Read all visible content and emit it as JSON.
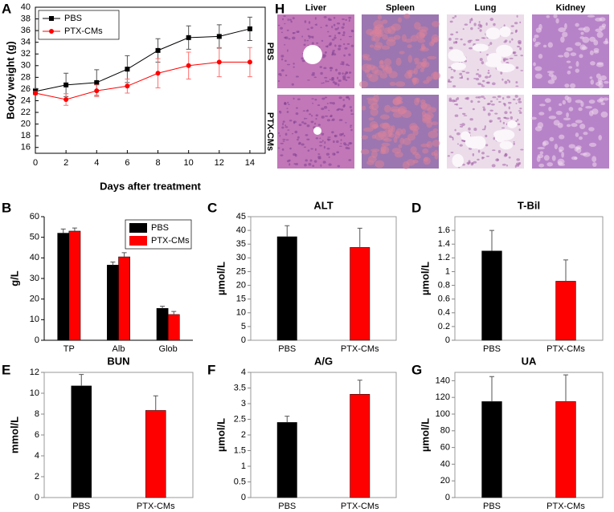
{
  "chart_data": [
    {
      "panel": "A",
      "type": "line",
      "xlabel": "Days after treatment",
      "ylabel": "Body weight (g)",
      "x": [
        0,
        2,
        4,
        6,
        8,
        10,
        12,
        14
      ],
      "series": [
        {
          "name": "PBS",
          "color": "#000000",
          "marker": "square",
          "values": [
            25.6,
            26.7,
            27.1,
            29.4,
            32.6,
            34.8,
            35.0,
            36.3
          ],
          "errors": [
            0.5,
            2.0,
            2.2,
            2.3,
            2.0,
            2.0,
            2.0,
            2.0
          ]
        },
        {
          "name": "PTX-CMs",
          "color": "#ff0000",
          "marker": "circle",
          "values": [
            25.3,
            24.2,
            25.7,
            26.5,
            28.7,
            30.0,
            30.6,
            30.6
          ],
          "errors": [
            0.3,
            1.0,
            1.0,
            1.2,
            2.5,
            2.3,
            2.5,
            2.5
          ]
        }
      ],
      "xlim": [
        0,
        15
      ],
      "xticks": [
        0,
        2,
        4,
        6,
        8,
        10,
        12,
        14
      ],
      "ylim": [
        15,
        40
      ],
      "yticks": [
        16,
        18,
        20,
        22,
        24,
        26,
        28,
        30,
        32,
        34,
        36,
        38,
        40
      ],
      "box": true,
      "legend": "upper left"
    },
    {
      "panel": "B",
      "type": "bar",
      "ylabel": "g/L",
      "categories": [
        "TP",
        "Alb",
        "Glob"
      ],
      "series": [
        {
          "name": "PBS",
          "color": "#000000",
          "values": [
            52,
            36.5,
            15.5
          ],
          "errors": [
            2,
            1.5,
            1
          ]
        },
        {
          "name": "PTX-CMs",
          "color": "#ff0000",
          "values": [
            53,
            40.5,
            12.5
          ],
          "errors": [
            1.5,
            2,
            1.5
          ]
        }
      ],
      "ylim": [
        0,
        60
      ],
      "yticks": [
        0,
        10,
        20,
        30,
        40,
        50,
        60
      ],
      "box": false,
      "legend": "upper right"
    },
    {
      "panel": "C",
      "type": "bar",
      "title": "ALT",
      "ylabel": "µmol/L",
      "categories": [
        "PBS",
        "PTX-CMs"
      ],
      "values": [
        37.7,
        33.8
      ],
      "errors": [
        4,
        7
      ],
      "colors": [
        "#000000",
        "#ff0000"
      ],
      "ylim": [
        0,
        45
      ],
      "yticks": [
        0,
        5,
        10,
        15,
        20,
        25,
        30,
        35,
        40,
        45
      ],
      "box": true
    },
    {
      "panel": "D",
      "type": "bar",
      "title": "T-Bil",
      "ylabel": "µmol/L",
      "categories": [
        "PBS",
        "PTX-CMs"
      ],
      "values": [
        1.3,
        0.86
      ],
      "errors": [
        0.3,
        0.31
      ],
      "colors": [
        "#000000",
        "#ff0000"
      ],
      "ylim": [
        0,
        1.8
      ],
      "yticks": [
        0,
        0.2,
        0.4,
        0.6,
        0.8,
        1,
        1.2,
        1.4,
        1.6
      ],
      "box": true
    },
    {
      "panel": "E",
      "type": "bar",
      "title": "BUN",
      "ylabel": "mmol/L",
      "categories": [
        "PBS",
        "PTX-CMs"
      ],
      "values": [
        10.7,
        8.35
      ],
      "errors": [
        1.1,
        1.4
      ],
      "colors": [
        "#000000",
        "#ff0000"
      ],
      "ylim": [
        0,
        12
      ],
      "yticks": [
        0,
        2,
        4,
        6,
        8,
        10,
        12
      ],
      "box": true
    },
    {
      "panel": "F",
      "type": "bar",
      "title": "A/G",
      "ylabel": "µmol/L",
      "categories": [
        "PBS",
        "PTX-CMs"
      ],
      "values": [
        2.4,
        3.3
      ],
      "errors": [
        0.2,
        0.45
      ],
      "colors": [
        "#000000",
        "#ff0000"
      ],
      "ylim": [
        0,
        4
      ],
      "yticks": [
        0,
        0.5,
        1,
        1.5,
        2,
        2.5,
        3,
        3.5,
        4
      ],
      "box": true
    },
    {
      "panel": "G",
      "type": "bar",
      "title": "UA",
      "ylabel": "µmol/L",
      "categories": [
        "PBS",
        "PTX-CMs"
      ],
      "values": [
        115,
        115
      ],
      "errors": [
        30,
        32
      ],
      "colors": [
        "#000000",
        "#ff0000"
      ],
      "ylim": [
        0,
        150
      ],
      "yticks": [
        0,
        20,
        40,
        60,
        80,
        100,
        120,
        140
      ],
      "box": true
    }
  ],
  "histology": {
    "panel": "H",
    "columns": [
      "Liver",
      "Spleen",
      "Lung",
      "Kidney"
    ],
    "rows": [
      "PBS",
      "PTX-CMs"
    ]
  }
}
